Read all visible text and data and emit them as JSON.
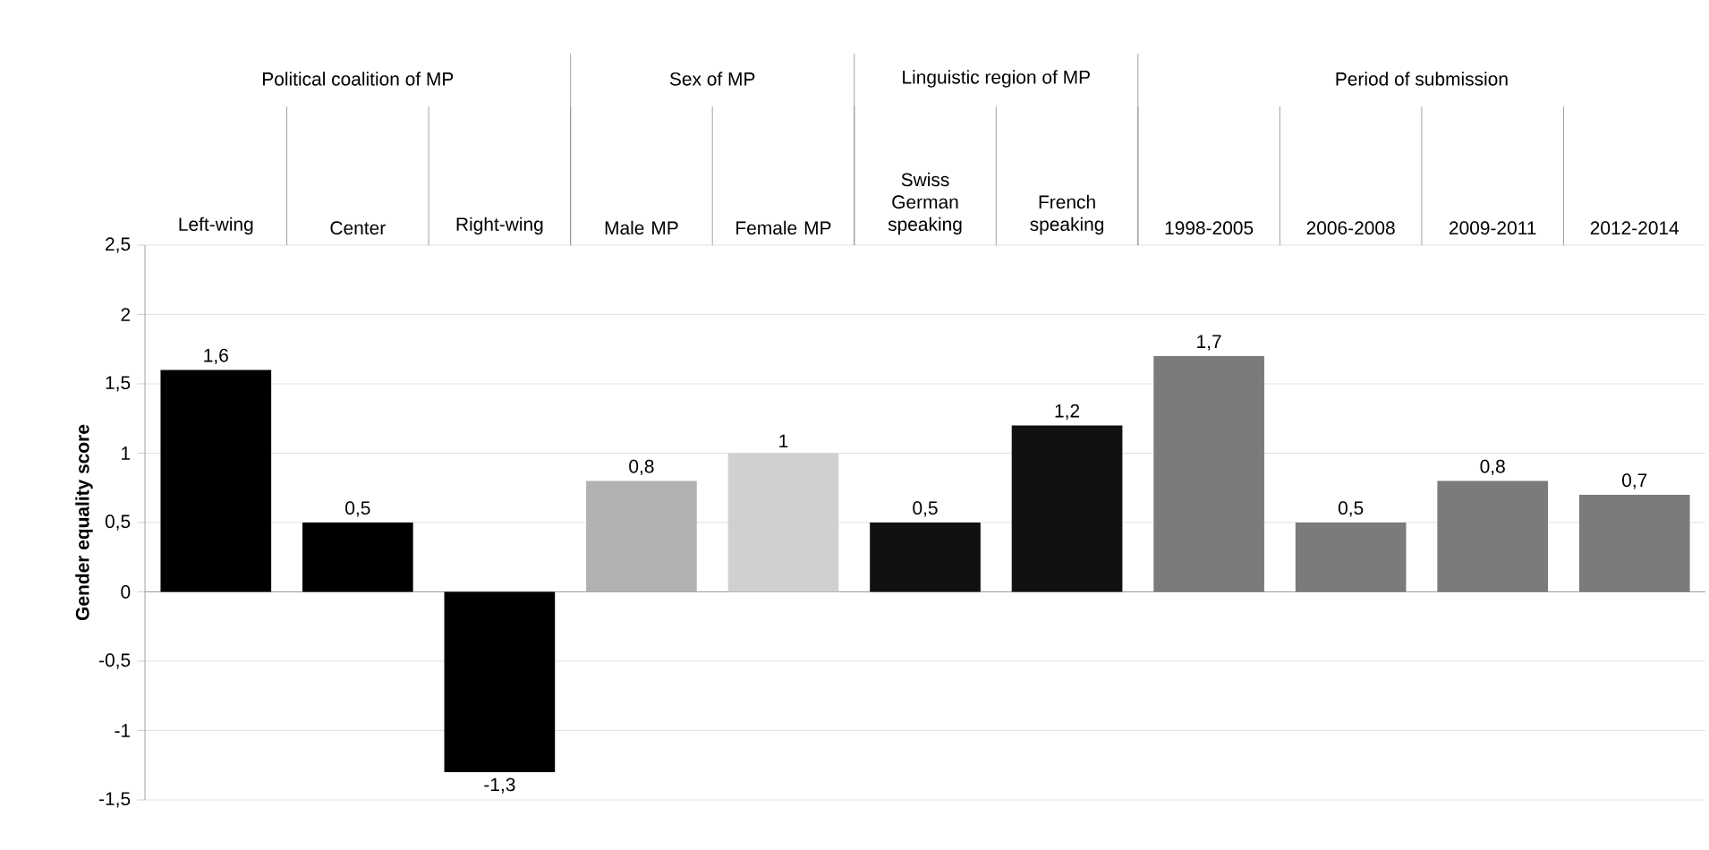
{
  "chart_data": {
    "type": "bar",
    "ylabel": "Gender equality score",
    "categories": [
      "Left-wing",
      "Center",
      "Right-wing",
      "Male MP",
      "Female MP",
      "Swiss German speaking",
      "French speaking",
      "1998-2005",
      "2006-2008",
      "2009-2011",
      "2012-2014"
    ],
    "values": [
      1.6,
      0.5,
      -1.3,
      0.8,
      1,
      0.5,
      1.2,
      1.7,
      0.5,
      0.8,
      0.7
    ],
    "colors": [
      "#000000",
      "#000000",
      "#000000",
      "#b2b2b2",
      "#d0d0d0",
      "#111111",
      "#111111",
      "#7b7b7b",
      "#7b7b7b",
      "#7b7b7b",
      "#7b7b7b"
    ],
    "value_labels": [
      "1,6",
      "0,5",
      "-1,3",
      "0,8",
      "1",
      "0,5",
      "1,2",
      "1,7",
      "0,5",
      "0,8",
      "0,7"
    ],
    "ylim": [
      -1.5,
      2.5
    ],
    "yticks": [
      {
        "value": -1.5,
        "label": "-1,5"
      },
      {
        "value": -1,
        "label": "-1"
      },
      {
        "value": -0.5,
        "label": "-0,5"
      },
      {
        "value": 0,
        "label": "0"
      },
      {
        "value": 0.5,
        "label": "0,5"
      },
      {
        "value": 1,
        "label": "1"
      },
      {
        "value": 1.5,
        "label": "1,5"
      },
      {
        "value": 2,
        "label": "2"
      },
      {
        "value": 2.5,
        "label": "2,5"
      }
    ],
    "grid": "y",
    "annotations": [
      "Political coalition of MP",
      "Sex of MP",
      "Linguistic region of MP",
      "Period of submission"
    ]
  }
}
